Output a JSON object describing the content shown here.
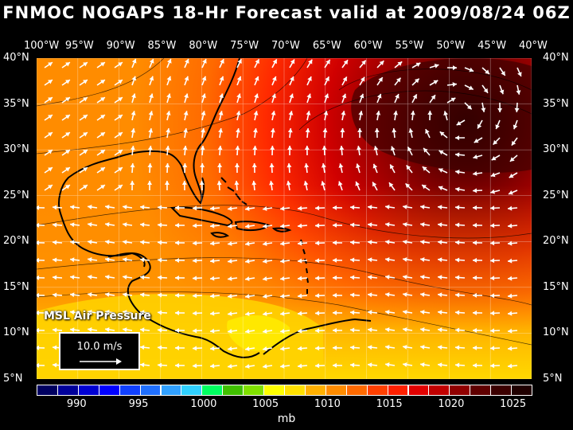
{
  "title": "FNMOC NOGAPS 18-Hr Forecast valid at 2009/08/24 06Z",
  "longitude_labels": [
    "100°W",
    "95°W",
    "90°W",
    "85°W",
    "80°W",
    "75°W",
    "70°W",
    "65°W",
    "60°W",
    "55°W",
    "50°W",
    "45°W",
    "40°W"
  ],
  "latitude_labels": [
    "40°N",
    "35°N",
    "30°N",
    "25°N",
    "20°N",
    "15°N",
    "10°N",
    "5°N"
  ],
  "field_label": "MSL Air Pressure",
  "wind_reference": {
    "label": "10.0 m/s"
  },
  "colorbar": {
    "unit": "mb",
    "tick_labels": [
      "990",
      "995",
      "1000",
      "1005",
      "1010",
      "1015",
      "1020",
      "1025"
    ],
    "colors": [
      "#000060",
      "#00009a",
      "#0000d2",
      "#0000ff",
      "#1040ff",
      "#2070ff",
      "#30a0ff",
      "#30d0ff",
      "#00ff60",
      "#40c000",
      "#80e000",
      "#ffff00",
      "#ffe000",
      "#ffb000",
      "#ff8c00",
      "#ff6a00",
      "#ff4000",
      "#ff2000",
      "#e00000",
      "#c00000",
      "#900000",
      "#600000",
      "#3c0000",
      "#200000"
    ]
  },
  "colors": {
    "background": "#000000",
    "text": "#ffffff",
    "land_outline": "#000000",
    "grid": "#ffffff"
  }
}
